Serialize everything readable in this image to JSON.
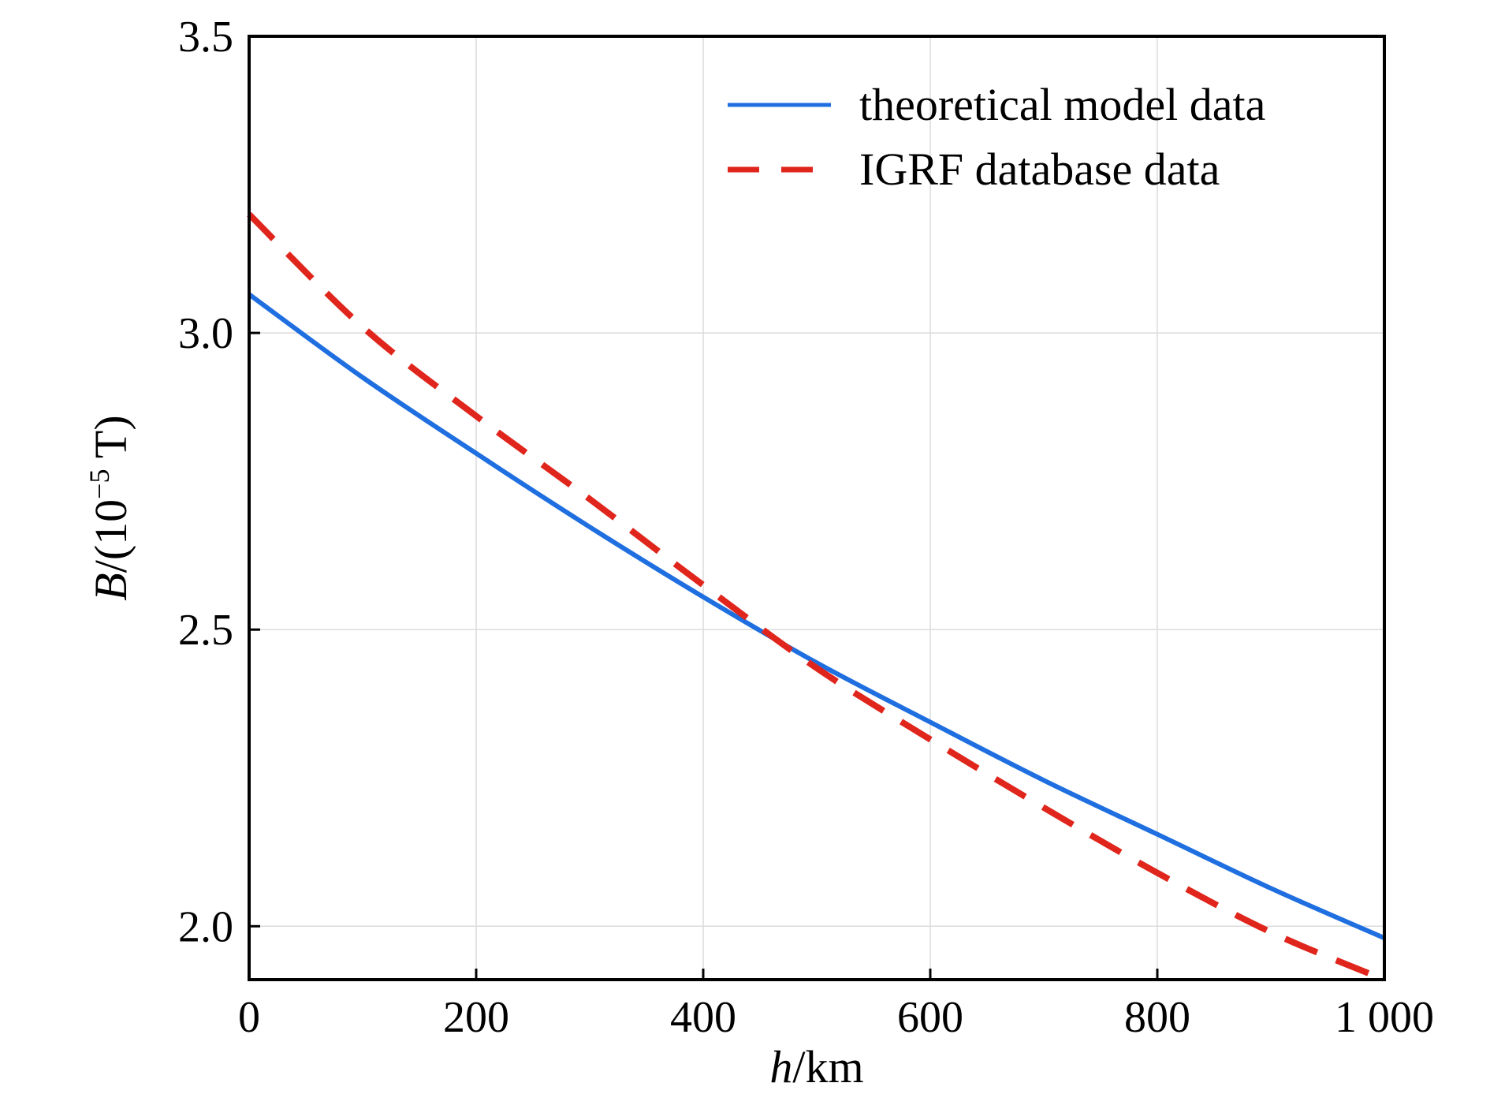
{
  "chart_data": {
    "type": "line",
    "xlabel_var": "h",
    "xlabel_unit": "/km",
    "ylabel_var": "B",
    "ylabel_unit_pre": "/(10",
    "ylabel_unit_sup": "−5",
    "ylabel_unit_post": " T)",
    "xlim": [
      0,
      1000
    ],
    "ylim": [
      1.91,
      3.5
    ],
    "xticks": [
      0,
      200,
      400,
      600,
      800,
      1000
    ],
    "xtick_labels": [
      "0",
      "200",
      "400",
      "600",
      "800",
      "1 000"
    ],
    "yticks": [
      2.0,
      2.5,
      3.0,
      3.5
    ],
    "ytick_labels": [
      "2.0",
      "2.5",
      "3.0",
      "3.5"
    ],
    "grid": true,
    "legend_position": "top-right",
    "series": [
      {
        "name": "theoretical model data",
        "color": "#1f6fe0",
        "style": "solid",
        "x": [
          0,
          100,
          200,
          300,
          400,
          500,
          600,
          700,
          800,
          900,
          1000
        ],
        "y": [
          3.065,
          2.925,
          2.797,
          2.673,
          2.555,
          2.444,
          2.344,
          2.246,
          2.155,
          2.064,
          1.98
        ]
      },
      {
        "name": "IGRF database data",
        "color": "#e0261c",
        "style": "dashed",
        "x": [
          0,
          100,
          200,
          300,
          400,
          500,
          600,
          700,
          800,
          900,
          1000
        ],
        "y": [
          3.2,
          3.01,
          2.86,
          2.72,
          2.575,
          2.435,
          2.315,
          2.2,
          2.09,
          1.99,
          1.91
        ]
      }
    ]
  }
}
